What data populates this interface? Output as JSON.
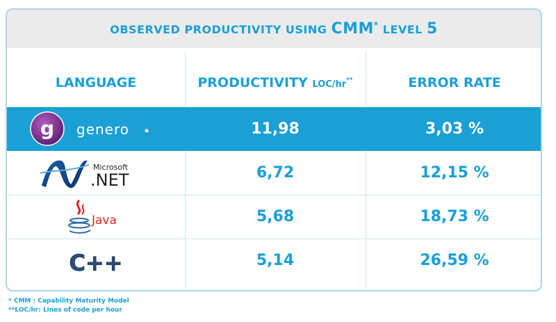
{
  "title": {
    "prefix": "OBSERVED PRODUCTIVITY USING ",
    "cmm": "CMM",
    "star": "*",
    "level": " LEVEL ",
    "level_num": "5"
  },
  "chart_data": {
    "type": "table",
    "columns": [
      "LANGUAGE",
      "PRODUCTIVITY",
      "ERROR RATE"
    ],
    "productivity_unit": "LOC/hr",
    "productivity_unit_mark": "**",
    "rows": [
      {
        "language": "genero.",
        "productivity": "11,98",
        "error_rate": "3,03 %"
      },
      {
        "language": "Microsoft .NET",
        "productivity": "6,72",
        "error_rate": "12,15 %"
      },
      {
        "language": "Java",
        "productivity": "5,68",
        "error_rate": "18,73 %"
      },
      {
        "language": "C++",
        "productivity": "5,14",
        "error_rate": "26,59 %"
      }
    ]
  },
  "logos": {
    "genero_text": "genero",
    "microsoft_text": "Microsoft",
    "net_text": ".NET",
    "java_text": "Java",
    "cpp_text": "C++"
  },
  "footnotes": {
    "cmm": "* CMM : Capability Maturity Model",
    "loc": "**LOC/hr: Lines of code per hour"
  },
  "colors": {
    "accent": "#1a9fd6",
    "highlight_row": "#1aa0d4",
    "title_bg": "#ebebeb",
    "border": "#a9d7ea"
  }
}
